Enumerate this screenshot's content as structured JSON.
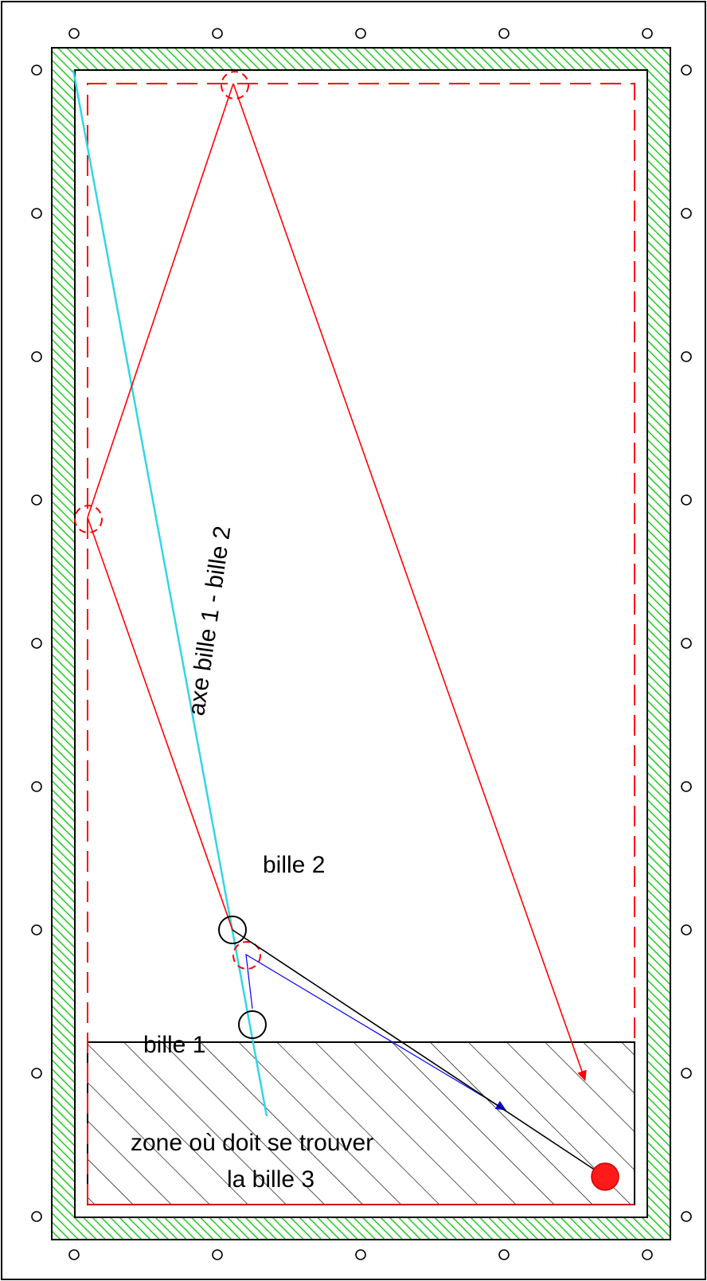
{
  "labels": {
    "axis": "axe bille 1 - bille 2",
    "ball2": "bille 2",
    "ball1": "bille 1",
    "zone_line1": "zone où doit se trouver",
    "zone_line2": "la bille 3"
  },
  "colors": {
    "frame": "#000000",
    "cushion_hatch": "#22cc22",
    "cue_ball_path": "#ff0000",
    "axis_line": "#33d6e6",
    "object_ball_path": "#0000ff",
    "ball3_path": "#000000",
    "ball3_fill": "#ff1a1a"
  }
}
